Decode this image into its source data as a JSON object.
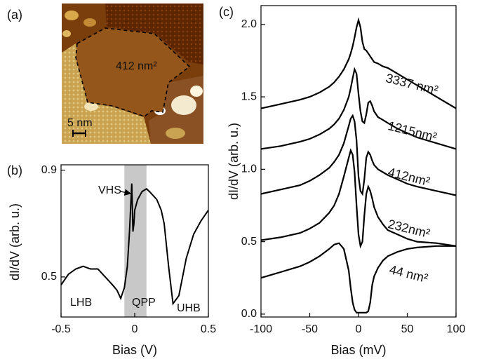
{
  "chart_data": [
    {
      "type": "image",
      "panel_label": "(a)",
      "annotations": [
        "412 nm²",
        "5 nm"
      ]
    },
    {
      "type": "line",
      "panel_label": "(b)",
      "xlabel": "Bias (V)",
      "ylabel": "dI/dV (arb. u.)",
      "color": "#000000",
      "x": [
        -0.5,
        -0.45,
        -0.4,
        -0.35,
        -0.3,
        -0.25,
        -0.2,
        -0.15,
        -0.12,
        -0.095,
        -0.07,
        -0.05,
        -0.035,
        -0.02,
        -0.012,
        -0.005,
        0,
        0.02,
        0.04,
        0.05,
        0.08,
        0.1,
        0.15,
        0.18,
        0.2,
        0.23,
        0.26,
        0.3,
        0.35,
        0.4,
        0.45,
        0.5
      ],
      "values": [
        0.47,
        0.51,
        0.53,
        0.54,
        0.53,
        0.53,
        0.5,
        0.47,
        0.45,
        0.42,
        0.46,
        0.54,
        0.67,
        0.85,
        0.67,
        0.7,
        0.75,
        0.79,
        0.81,
        0.82,
        0.83,
        0.82,
        0.79,
        0.75,
        0.7,
        0.54,
        0.4,
        0.43,
        0.57,
        0.66,
        0.71,
        0.75
      ],
      "highlight_range": [
        -0.07,
        0.08
      ],
      "annotations": [
        "VHS",
        "LHB",
        "QPP",
        "UHB"
      ],
      "xlim": [
        -0.5,
        0.5
      ],
      "xticks": [
        -0.5,
        0,
        0.5
      ],
      "ylim": [
        0.35,
        0.92
      ],
      "yticks": [
        0.5,
        0.9
      ]
    },
    {
      "type": "line",
      "panel_label": "(c)",
      "xlabel": "Bias (mV)",
      "ylabel": "dI/dV (arb. u.)",
      "x": [
        -100,
        -80,
        -60,
        -50,
        -40,
        -30,
        -25,
        -20,
        -15,
        -10,
        -8,
        -6,
        -4,
        -2,
        0,
        2,
        4,
        6,
        8,
        10,
        12,
        14,
        16,
        20,
        25,
        30,
        40,
        50,
        60,
        80,
        100
      ],
      "series": [
        {
          "name": "3337 nm²",
          "color": "#000000",
          "values": [
            1.42,
            1.45,
            1.48,
            1.5,
            1.53,
            1.57,
            1.6,
            1.64,
            1.69,
            1.76,
            1.8,
            1.85,
            1.91,
            1.98,
            2.03,
            1.98,
            1.88,
            1.83,
            1.82,
            1.8,
            1.78,
            1.76,
            1.74,
            1.73,
            1.71,
            1.7,
            1.66,
            1.62,
            1.58,
            1.5,
            1.42
          ]
        },
        {
          "name": "1215nm²",
          "color": "#000000",
          "values": [
            1.14,
            1.16,
            1.19,
            1.21,
            1.24,
            1.28,
            1.31,
            1.35,
            1.41,
            1.5,
            1.56,
            1.63,
            1.69,
            1.66,
            1.52,
            1.4,
            1.33,
            1.32,
            1.38,
            1.46,
            1.47,
            1.44,
            1.4,
            1.36,
            1.34,
            1.32,
            1.28,
            1.25,
            1.22,
            1.18,
            1.14
          ]
        },
        {
          "name": "412nm²",
          "color": "#000000",
          "values": [
            0.83,
            0.86,
            0.89,
            0.92,
            0.96,
            1.01,
            1.05,
            1.1,
            1.18,
            1.3,
            1.35,
            1.37,
            1.33,
            1.2,
            0.95,
            0.85,
            0.83,
            0.93,
            1.08,
            1.12,
            1.1,
            1.06,
            1.03,
            1.0,
            0.98,
            0.96,
            0.93,
            0.9,
            0.88,
            0.85,
            0.82
          ]
        },
        {
          "name": "232nm²",
          "color": "#000000",
          "values": [
            0.51,
            0.53,
            0.56,
            0.59,
            0.63,
            0.7,
            0.75,
            0.83,
            0.95,
            1.08,
            1.13,
            1.1,
            0.98,
            0.75,
            0.55,
            0.47,
            0.5,
            0.68,
            0.83,
            0.88,
            0.85,
            0.8,
            0.74,
            0.67,
            0.62,
            0.58,
            0.55,
            0.52,
            0.5,
            0.49,
            0.47
          ]
        },
        {
          "name": "44 nm²",
          "color": "#000000",
          "values": [
            0.25,
            0.29,
            0.33,
            0.36,
            0.4,
            0.45,
            0.48,
            0.49,
            0.45,
            0.3,
            0.18,
            0.08,
            0.03,
            0.01,
            0.01,
            0.01,
            0.01,
            0.01,
            0.01,
            0.02,
            0.08,
            0.2,
            0.26,
            0.32,
            0.37,
            0.4,
            0.43,
            0.45,
            0.46,
            0.47,
            0.47
          ]
        }
      ],
      "xlim": [
        -100,
        100
      ],
      "xticks": [
        -100,
        -50,
        0,
        50,
        100
      ],
      "ylim": [
        -0.02,
        2.13
      ],
      "yticks": [
        {
          "value": 0,
          "label": "0.0"
        },
        0.5,
        {
          "value": 1,
          "label": "1.0"
        },
        1.5,
        {
          "value": 2,
          "label": "2.0"
        }
      ]
    }
  ]
}
